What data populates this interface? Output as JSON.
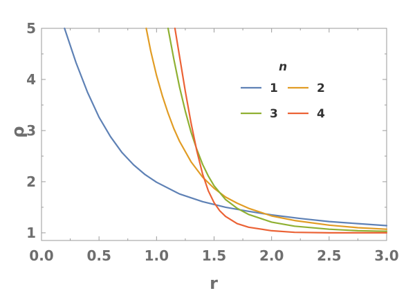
{
  "chart_data": {
    "type": "line",
    "title": "",
    "xlabel": "r",
    "ylabel": "ρ",
    "xlim": [
      0,
      3
    ],
    "ylim": [
      0.85,
      5
    ],
    "xticks": [
      "0.0",
      "0.5",
      "1.0",
      "1.5",
      "2.0",
      "2.5",
      "3.0"
    ],
    "yticks": [
      "1",
      "2",
      "3",
      "4",
      "5"
    ],
    "grid": false,
    "legend": {
      "title": "n",
      "placement": "right-center"
    },
    "series": [
      {
        "name": "1",
        "color": "#5e81b5",
        "x": [
          0.2,
          0.3,
          0.4,
          0.5,
          0.6,
          0.7,
          0.8,
          0.9,
          1.0,
          1.2,
          1.4,
          1.6,
          1.8,
          2.0,
          2.25,
          2.5,
          2.75,
          3.0
        ],
        "y": [
          5.0,
          4.33,
          3.75,
          3.26,
          2.88,
          2.57,
          2.33,
          2.14,
          1.99,
          1.76,
          1.61,
          1.5,
          1.42,
          1.35,
          1.28,
          1.22,
          1.18,
          1.14
        ]
      },
      {
        "name": "2",
        "color": "#e19c24",
        "x": [
          0.91,
          0.95,
          1.0,
          1.05,
          1.1,
          1.15,
          1.2,
          1.3,
          1.4,
          1.5,
          1.6,
          1.7,
          1.8,
          2.0,
          2.2,
          2.5,
          2.75,
          3.0
        ],
        "y": [
          5.0,
          4.55,
          4.08,
          3.68,
          3.34,
          3.04,
          2.79,
          2.39,
          2.09,
          1.87,
          1.7,
          1.58,
          1.48,
          1.33,
          1.24,
          1.15,
          1.1,
          1.07
        ]
      },
      {
        "name": "3",
        "color": "#8fb032",
        "x": [
          1.1,
          1.15,
          1.2,
          1.25,
          1.3,
          1.35,
          1.4,
          1.45,
          1.5,
          1.6,
          1.7,
          1.8,
          2.0,
          2.2,
          2.5,
          2.75,
          3.0
        ],
        "y": [
          5.0,
          4.4,
          3.85,
          3.38,
          2.97,
          2.63,
          2.34,
          2.11,
          1.92,
          1.65,
          1.48,
          1.36,
          1.21,
          1.13,
          1.07,
          1.04,
          1.03
        ]
      },
      {
        "name": "4",
        "color": "#eb6235",
        "x": [
          1.16,
          1.2,
          1.25,
          1.3,
          1.35,
          1.4,
          1.45,
          1.5,
          1.55,
          1.6,
          1.7,
          1.8,
          2.0,
          2.2,
          2.5,
          2.75,
          3.0
        ],
        "y": [
          5.0,
          4.45,
          3.77,
          3.15,
          2.6,
          2.15,
          1.82,
          1.59,
          1.43,
          1.32,
          1.18,
          1.11,
          1.04,
          1.01,
          1.0,
          1.0,
          1.0
        ]
      }
    ]
  }
}
